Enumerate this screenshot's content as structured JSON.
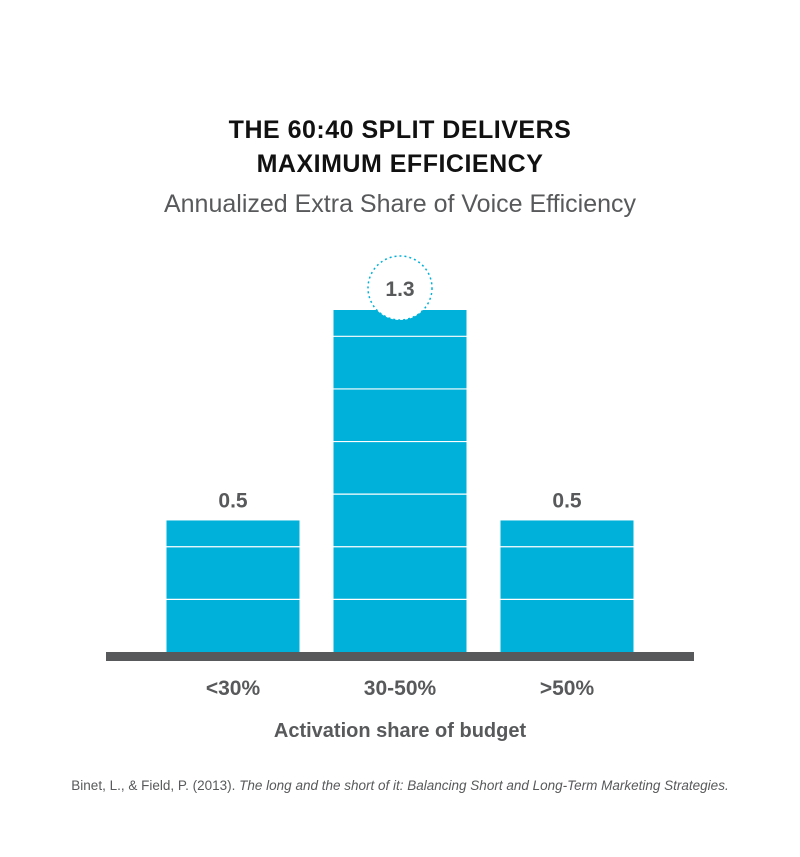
{
  "chart_data": {
    "type": "bar",
    "title_lines": [
      "THE 60:40 SPLIT DELIVERS",
      "MAXIMUM EFFICIENCY"
    ],
    "subtitle": "Annualized Extra Share of Voice Efficiency",
    "categories": [
      "<30%",
      "30-50%",
      ">50%"
    ],
    "values": [
      0.5,
      1.3,
      0.5
    ],
    "value_labels": [
      "0.5",
      "1.3",
      "0.5"
    ],
    "highlight_index": 1,
    "xlabel": "Activation share of budget",
    "ylabel": "",
    "ylim": [
      0,
      1.3
    ],
    "grid_step": 0.2,
    "colors": {
      "bar": "#00b1d9",
      "axis": "#58595b",
      "highlight_ring": "#00b1d9"
    }
  },
  "citation": {
    "authors": "Binet, L., & Field, P. (2013).",
    "work": "The long and the short of it: Balancing Short and Long-Term Marketing Strategies."
  }
}
